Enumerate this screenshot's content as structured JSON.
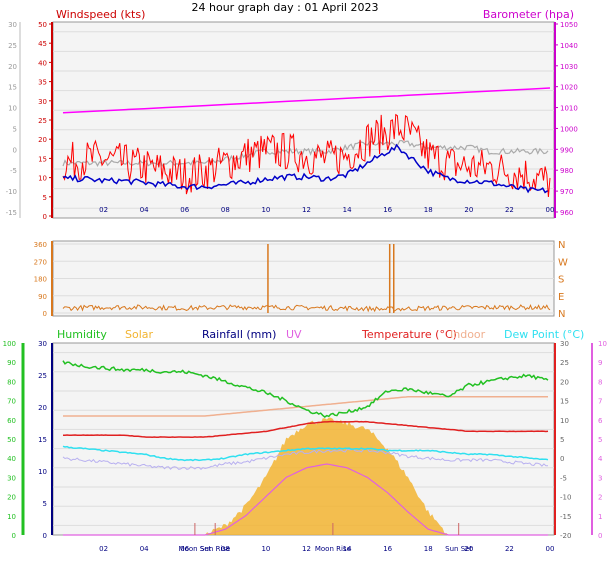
{
  "title": "24 hour graph day : 01 April 2023",
  "colors": {
    "wind": "#ff0000",
    "gust": "#ff0000",
    "avg": "#0000c8",
    "grey": "#aaaaaa",
    "baro": "#ff00ff",
    "dir": "#d8781e",
    "humidity": "#22c022",
    "solar": "#f2b431",
    "rain": "#000080",
    "uv": "#e060e0",
    "temp": "#e02020",
    "indoor": "#f0b090",
    "dew": "#30e0f0",
    "bg": "#ffffff",
    "plot": "#f0f0f0",
    "grid": "#dddddd"
  },
  "chart_data": [
    {
      "type": "line",
      "name": "wind-baro",
      "left_label": "Windspeed (kts)",
      "right_label": "Barometer (hpa)",
      "x_ticks": [
        "02",
        "04",
        "06",
        "08",
        "10",
        "12",
        "14",
        "16",
        "18",
        "20",
        "22",
        "00"
      ],
      "left_ticks": [
        "50",
        "45",
        "40",
        "35",
        "30",
        "25",
        "20",
        "15",
        "10",
        "5",
        "0"
      ],
      "left_outer_ticks": [
        "30",
        "25",
        "20",
        "15",
        "10",
        "5",
        "0",
        "-5",
        "-10",
        "-15"
      ],
      "right_ticks": [
        "1050",
        "1040",
        "1030",
        "1020",
        "1010",
        "1000",
        "990",
        "980",
        "970",
        "960"
      ],
      "ylim_left": [
        0,
        50
      ],
      "ylim_right": [
        955,
        1050
      ],
      "x_hours": [
        0,
        1,
        2,
        3,
        4,
        5,
        6,
        7,
        8,
        9,
        10,
        11,
        12,
        13,
        14,
        15,
        16,
        16.5,
        17,
        18,
        19,
        20,
        21,
        22,
        23,
        24
      ],
      "barometer": [
        1006,
        1006.5,
        1007,
        1007.5,
        1008,
        1008.5,
        1009,
        1009.5,
        1010,
        1010.5,
        1011,
        1011.5,
        1012,
        1012.5,
        1013,
        1013.5,
        1014,
        1014.2,
        1014.5,
        1015,
        1015.5,
        1016,
        1016.5,
        1017,
        1017.5,
        1018
      ],
      "gust": [
        14,
        15,
        15,
        14,
        13,
        12,
        11,
        12,
        14,
        16,
        17,
        17,
        16,
        15,
        16,
        20,
        22,
        23,
        22,
        16,
        14,
        13,
        13,
        12,
        11,
        9
      ],
      "average": [
        10,
        10,
        9.5,
        9.5,
        9,
        8.5,
        8,
        8,
        8.5,
        9,
        10,
        10.5,
        10.5,
        10,
        11,
        14,
        17,
        18,
        16,
        12,
        10,
        9.5,
        9,
        8,
        7,
        7
      ],
      "grey_series": [
        14,
        14,
        14,
        14,
        14,
        14,
        14,
        14,
        15,
        16,
        17,
        17,
        17,
        17,
        18,
        19,
        19,
        19,
        19,
        18,
        18,
        18,
        17,
        17,
        17,
        17
      ]
    },
    {
      "type": "line",
      "name": "wind-direction",
      "left_ticks": [
        "360",
        "270",
        "180",
        "90",
        "0"
      ],
      "right_ticks": [
        "N",
        "W",
        "S",
        "E",
        "N"
      ],
      "ylim": [
        0,
        360
      ],
      "x_hours": [
        0,
        2,
        4,
        6,
        8,
        10,
        12,
        14,
        16,
        18,
        20,
        22,
        24
      ],
      "direction": [
        25,
        30,
        30,
        25,
        30,
        30,
        28,
        25,
        20,
        25,
        28,
        30,
        28
      ],
      "spikes": [
        {
          "hour": 10.1,
          "value": 360
        },
        {
          "hour": 16.1,
          "value": 360
        },
        {
          "hour": 16.3,
          "value": 360
        }
      ]
    },
    {
      "type": "line",
      "name": "multi",
      "legend": [
        "Humidity",
        "Solar",
        "Rainfall (mm)",
        "UV",
        "Temperature (°C)",
        "Indoor",
        "Dew Point (°C)"
      ],
      "x_ticks": [
        "02",
        "04",
        "06",
        "08",
        "10",
        "12",
        "14",
        "16",
        "18",
        "20",
        "22",
        "00"
      ],
      "events": [
        "Moon Set",
        "Sun Rise",
        "Moon Rise",
        "Sun Set"
      ],
      "humidity_ticks": [
        "100",
        "90",
        "80",
        "70",
        "60",
        "50",
        "40",
        "30",
        "20",
        "10",
        "0"
      ],
      "rain_ticks": [
        "30",
        "25",
        "20",
        "15",
        "10",
        "5",
        "0"
      ],
      "temp_ticks": [
        "30",
        "25",
        "20",
        "15",
        "10",
        "5",
        "0",
        "-5",
        "-10",
        "-15",
        "-20"
      ],
      "uv_ticks": [
        "10",
        "9",
        "8",
        "7",
        "6",
        "5",
        "4",
        "3",
        "2",
        "1",
        "0"
      ],
      "ylim_humidity": [
        0,
        100
      ],
      "ylim_temp": [
        -20,
        30
      ],
      "x_hours": [
        0,
        1,
        2,
        3,
        4,
        5,
        6,
        7,
        8,
        9,
        10,
        11,
        12,
        13,
        14,
        15,
        16,
        17,
        18,
        19,
        20,
        21,
        22,
        23,
        24
      ],
      "humidity": [
        90,
        88,
        87,
        86,
        86,
        85,
        85,
        83,
        80,
        77,
        74,
        70,
        65,
        62,
        64,
        67,
        75,
        76,
        74,
        72,
        78,
        80,
        82,
        83,
        80
      ],
      "temperature": [
        6,
        6,
        6,
        6,
        5.5,
        5.5,
        5.5,
        5.5,
        6,
        6.5,
        7,
        8,
        9,
        9.5,
        9.5,
        9.5,
        9,
        8.5,
        8,
        7.5,
        7,
        7,
        7,
        7,
        7
      ],
      "indoor": [
        11,
        11,
        11,
        11,
        11,
        11,
        11,
        11,
        11.5,
        12,
        12.5,
        13,
        13.5,
        14,
        14.5,
        15,
        15.5,
        16,
        16,
        16,
        16,
        16,
        16,
        16,
        16
      ],
      "dewpoint": [
        3,
        2.5,
        2,
        1.5,
        1,
        0,
        -0.5,
        -0.5,
        0,
        1,
        1.5,
        2,
        2.5,
        2.5,
        2.5,
        2.5,
        2,
        2,
        2,
        1.5,
        1,
        1,
        0.5,
        0,
        -0.5
      ],
      "lavender": [
        0,
        -0.5,
        -1,
        -1.5,
        -2,
        -2.5,
        -2.5,
        -2.5,
        -1.5,
        -1,
        0,
        1,
        1.5,
        2,
        2,
        2,
        1.5,
        0.5,
        0,
        -0.5,
        -0.5,
        -0.5,
        -1,
        -1.5,
        -2
      ],
      "solar_pct": [
        0,
        0,
        0,
        0,
        0,
        0,
        0,
        0,
        5,
        15,
        30,
        50,
        58,
        60,
        58,
        55,
        45,
        30,
        12,
        0,
        0,
        0,
        0,
        0,
        0
      ],
      "uv": [
        0,
        0,
        0,
        0,
        0,
        0,
        0,
        0,
        0.3,
        1,
        2,
        3,
        3.5,
        3.7,
        3.5,
        3,
        2.2,
        1.2,
        0.3,
        0,
        0,
        0,
        0,
        0,
        0
      ]
    }
  ]
}
